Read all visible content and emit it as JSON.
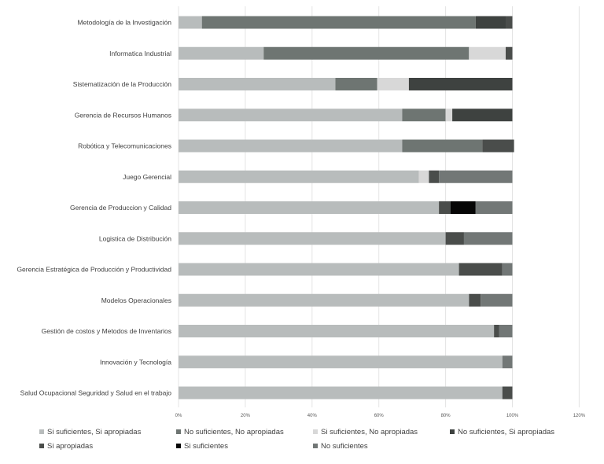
{
  "chart_data": {
    "type": "bar",
    "orientation": "horizontal",
    "stacked": true,
    "percent_stacked": true,
    "title": "",
    "xlabel": "",
    "ylabel": "",
    "xlim": [
      0,
      120
    ],
    "x_ticks": [
      "0%",
      "20%",
      "40%",
      "60%",
      "80%",
      "100%",
      "120%"
    ],
    "grid": true,
    "legend_position": "bottom",
    "categories": [
      "Metodología de la Investigación",
      "Informatica Industrial",
      "Sistematización de la Producción",
      "Gerencia de Recursos Humanos",
      "Robótica y Telecomunicaciones",
      "Juego Gerencial",
      "Gerencia de Produccion y Calidad",
      "Logistica de Distribución",
      "Gerencia Estratégica de Producción y Productividad",
      "Modelos Operacionales",
      "Gestión de costos y Metodos de Inventarios",
      "Innovación y Tecnología",
      "Salud Ocupacional Seguridad y Salud en el trabajo"
    ],
    "series": [
      {
        "name": "Si suficientes, Si apropiadas",
        "color": "#b8bcbc",
        "values": [
          7,
          25.5,
          47,
          67,
          67,
          72,
          78,
          80,
          84,
          87,
          94.5,
          97,
          97
        ]
      },
      {
        "name": "No suficientes, No apropiadas",
        "color": "#6e7572",
        "values": [
          82,
          61.5,
          12.5,
          13,
          24,
          0,
          0,
          0,
          0,
          0,
          0,
          0,
          0
        ]
      },
      {
        "name": "Si suficientes, No apropiadas",
        "color": "#d8d8d8",
        "values": [
          0,
          11,
          9.5,
          2,
          0,
          3,
          0,
          0,
          0,
          0,
          0,
          0,
          0
        ]
      },
      {
        "name": "No suficientes, Si apropiadas",
        "color": "#3e4240",
        "values": [
          9,
          0,
          31,
          18,
          0,
          0,
          0,
          0,
          0,
          0,
          0,
          0,
          0
        ]
      },
      {
        "name": "Si apropiadas",
        "color": "#4a4d4b",
        "values": [
          2,
          2,
          0,
          0,
          9.5,
          3,
          3.5,
          5.5,
          13,
          3.5,
          1.5,
          0,
          3
        ]
      },
      {
        "name": "Si suficientes",
        "color": "#060606",
        "values": [
          0,
          0,
          0,
          0,
          0,
          0,
          7.5,
          0,
          0,
          0,
          0,
          0,
          0
        ]
      },
      {
        "name": "No suficientes",
        "color": "#727776",
        "values": [
          0,
          0,
          0,
          0,
          0,
          22,
          11,
          14.5,
          3,
          9.5,
          4,
          3,
          0
        ]
      }
    ]
  },
  "legend": {
    "rows": [
      [
        "Si suficientes, Si apropiadas",
        "No suficientes, No apropiadas",
        "Si suficientes, No apropiadas",
        "No suficientes, Si apropiadas"
      ],
      [
        "Si apropiadas",
        "Si suficientes",
        "No suficientes"
      ]
    ]
  }
}
